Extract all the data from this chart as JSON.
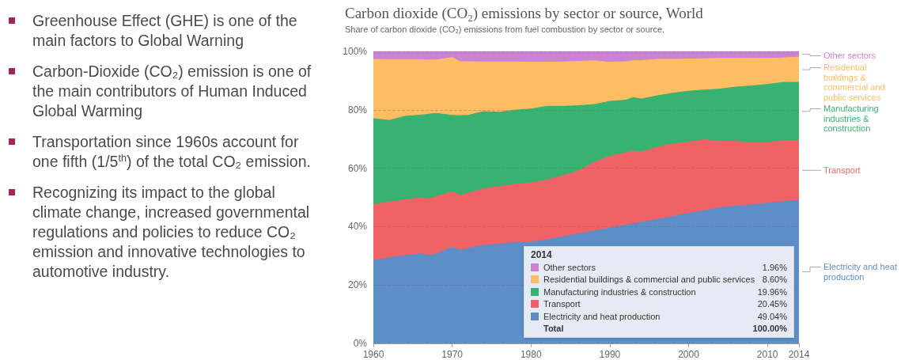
{
  "chart_data": {
    "type": "area",
    "title": "Carbon dioxide (CO₂) emissions by sector or source, World",
    "subtitle": "Share of carbon dioxide (CO₂) emissions from fuel combustion by sector or source.",
    "stacked": true,
    "legend": "right",
    "grid": "y",
    "x": [
      1960,
      1962,
      1964,
      1966,
      1967,
      1968,
      1970,
      1971,
      1972,
      1974,
      1976,
      1978,
      1980,
      1982,
      1984,
      1986,
      1988,
      1990,
      1992,
      1993,
      1994,
      1996,
      1998,
      2000,
      2002,
      2004,
      2006,
      2008,
      2010,
      2012,
      2014
    ],
    "xlim": [
      1960,
      2014
    ],
    "xticks": [
      1960,
      1970,
      1980,
      1990,
      2000,
      2010,
      2014
    ],
    "ylim": [
      0,
      100
    ],
    "yticks": [
      {
        "value": 0,
        "label": "0%"
      },
      {
        "value": 20,
        "label": "20%"
      },
      {
        "value": 40,
        "label": "40%"
      },
      {
        "value": 60,
        "label": "60%"
      },
      {
        "value": 80,
        "label": "80%"
      },
      {
        "value": 100,
        "label": "100%"
      }
    ],
    "series": [
      {
        "name": "Electricity and heat production",
        "color": "#5d8ec7",
        "values": [
          28.4,
          29.3,
          30.1,
          30.7,
          30.1,
          30.7,
          32.9,
          31.9,
          32.5,
          33.6,
          34.0,
          34.6,
          34.7,
          35.5,
          36.5,
          37.5,
          38.5,
          39.5,
          40.5,
          41.0,
          41.5,
          42.5,
          43.5,
          44.5,
          45.5,
          46.5,
          47.0,
          47.5,
          48.0,
          48.5,
          49.04
        ]
      },
      {
        "name": "Transport",
        "color": "#ef6367",
        "values": [
          19.2,
          19.1,
          19.1,
          19.2,
          19.4,
          19.6,
          19.0,
          18.8,
          18.9,
          19.4,
          19.8,
          19.9,
          20.3,
          20.5,
          21.0,
          21.5,
          23.5,
          24.6,
          24.8,
          24.9,
          24.0,
          24.7,
          24.8,
          24.5,
          24.3,
          22.7,
          22.2,
          21.3,
          20.8,
          21.0,
          20.45
        ]
      },
      {
        "name": "Manufacturing industries & construction",
        "color": "#38b271",
        "values": [
          29.4,
          28.0,
          28.6,
          28.3,
          29.0,
          28.5,
          26.2,
          27.3,
          26.7,
          26.4,
          25.4,
          25.4,
          25.3,
          25.2,
          23.7,
          22.4,
          19.8,
          18.8,
          18.0,
          18.3,
          18.2,
          17.6,
          17.4,
          17.4,
          17.0,
          17.9,
          18.6,
          19.4,
          19.9,
          19.9,
          19.96
        ]
      },
      {
        "name": "Residential buildings & commercial and public services",
        "color": "#fdbd63",
        "values": [
          20.3,
          20.8,
          19.4,
          19.0,
          18.6,
          18.3,
          19.8,
          18.5,
          18.4,
          17.0,
          17.2,
          16.5,
          16.0,
          15.1,
          15.2,
          15.2,
          15.0,
          13.4,
          13.2,
          12.6,
          13.2,
          12.5,
          11.6,
          11.0,
          10.7,
          10.5,
          9.8,
          9.4,
          8.9,
          8.4,
          8.6
        ]
      },
      {
        "name": "Other sectors",
        "color": "#cc82d3",
        "values": [
          2.7,
          2.8,
          2.8,
          2.8,
          2.9,
          2.9,
          2.1,
          3.5,
          3.5,
          3.6,
          3.6,
          3.6,
          3.7,
          3.7,
          3.6,
          3.4,
          3.2,
          3.7,
          3.5,
          3.2,
          3.1,
          2.7,
          2.7,
          2.6,
          2.5,
          2.4,
          2.4,
          2.4,
          2.4,
          2.2,
          1.96
        ]
      }
    ],
    "annotations": [
      "Greenhouse Effect (GHE) is one of the main factors to Global Warning",
      "Carbon-Dioxide (CO₂) emission is one of the main contributors of Human Induced Global Warming",
      "Transportation since 1960s account for one fifth (1/5$^{th}$) of the total CO₂ emission.",
      "Recognizing its impact to the global climate change, increased governmental regulations and policies to reduce CO₂ emission and innovative technologies to automotive industry.",
      "2014",
      "1.96%",
      "8.60%",
      "19.96%",
      "20.45%",
      "49.04%",
      "Total",
      "100.00%"
    ]
  }
}
